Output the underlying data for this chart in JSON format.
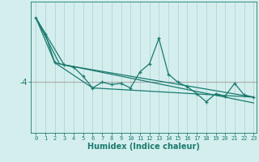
{
  "xlabel": "Humidex (Indice chaleur)",
  "bg_color": "#d4eeee",
  "line_color": "#1a7a6e",
  "grid_color": "#b8d8d8",
  "xmin": 0,
  "xmax": 23,
  "ymin": -6.2,
  "ymax": -0.5,
  "ytick_val": -4,
  "hline_color": "#aaaaaa",
  "series0": [
    0,
    -1.2,
    1,
    -1.9,
    2,
    -3.15,
    3,
    -3.25,
    4,
    -3.35,
    5,
    -3.75,
    6,
    -4.25,
    7,
    -4.0,
    8,
    -4.1,
    9,
    -4.05,
    10,
    -4.25,
    11,
    -3.55,
    12,
    -3.2,
    13,
    -2.1,
    14,
    -3.65,
    15,
    -4.0,
    16,
    -4.2,
    17,
    -4.5,
    18,
    -4.85,
    19,
    -4.5,
    20,
    -4.6,
    21,
    -4.05,
    22,
    -4.55,
    23,
    -4.65
  ],
  "series1": [
    0,
    -1.2,
    2,
    -3.15,
    6,
    -4.25,
    23,
    -4.65
  ],
  "series2": [
    0,
    -1.2,
    2.5,
    -3.2,
    23,
    -4.9
  ],
  "series3": [
    0,
    -1.2,
    3,
    -3.25,
    23,
    -4.65
  ],
  "xlabel_fontsize": 7,
  "ytick_fontsize": 7,
  "xtick_fontsize": 5
}
